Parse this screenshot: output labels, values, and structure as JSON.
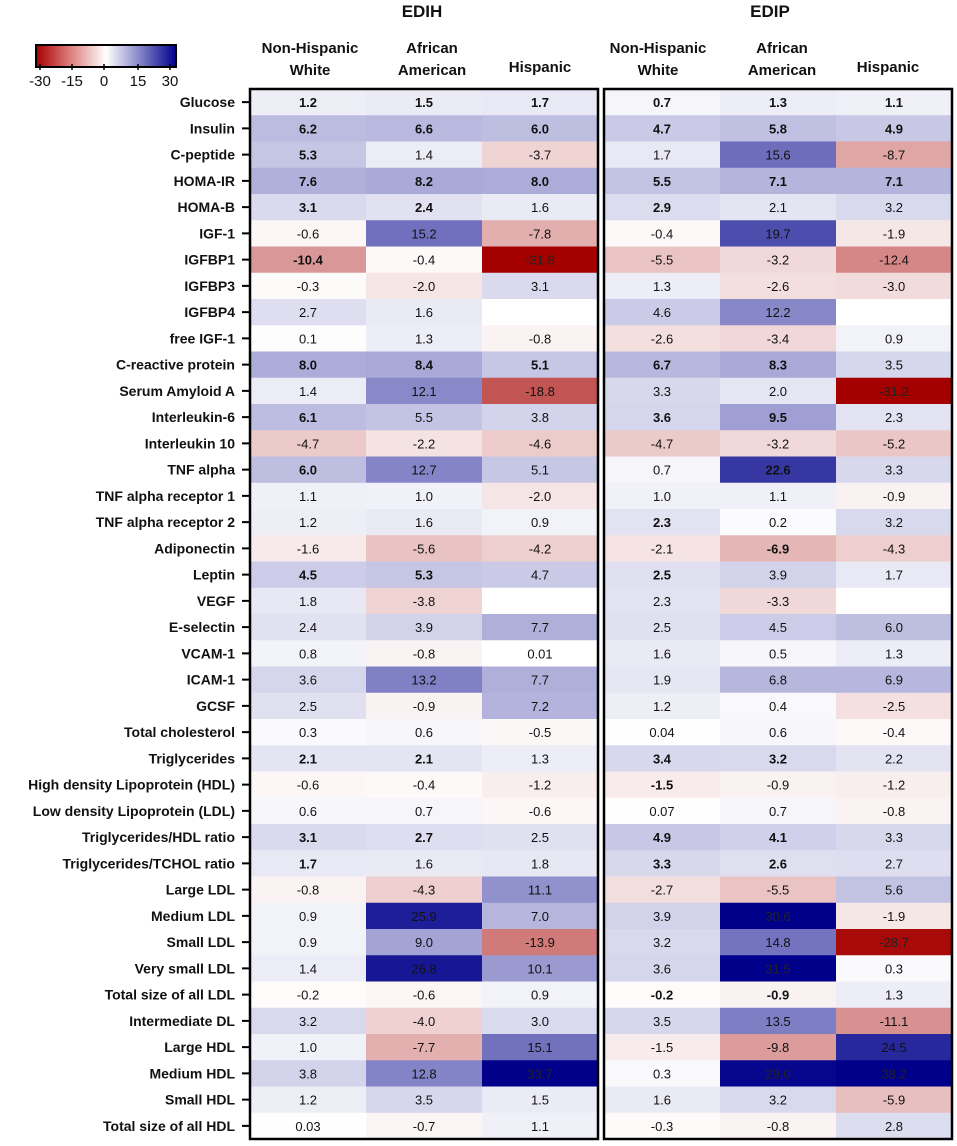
{
  "chart_data": {
    "type": "heatmap",
    "panels": [
      "EDIH",
      "EDIP"
    ],
    "columns": [
      "Non-Hispanic White",
      "African American",
      "Hispanic"
    ],
    "column_header_lines": [
      [
        "Non-Hispanic",
        "White"
      ],
      [
        "African",
        "American"
      ],
      [
        "Hispanic"
      ]
    ],
    "color_scale": {
      "min": -30,
      "max": 30,
      "ticks": [
        "-30",
        "-15",
        "0",
        "15",
        "30"
      ],
      "low_color": "#a50000",
      "mid_color": "#ffffff",
      "high_color": "#00008b"
    },
    "rows": [
      "Glucose",
      "Insulin",
      "C-peptide",
      "HOMA-IR",
      "HOMA-B",
      "IGF-1",
      "IGFBP1",
      "IGFBP3",
      "IGFBP4",
      "free IGF-1",
      "C-reactive protein",
      "Serum Amyloid A",
      "Interleukin-6",
      "Interleukin 10",
      "TNF alpha",
      "TNF alpha receptor 1",
      "TNF alpha receptor 2",
      "Adiponectin",
      "Leptin",
      "VEGF",
      "E-selectin",
      "VCAM-1",
      "ICAM-1",
      "GCSF",
      "Total cholesterol",
      "Triglycerides",
      "High density Lipoprotein (HDL)",
      "Low density Lipoprotein (LDL)",
      "Triglycerides/HDL ratio",
      "Triglycerides/TCHOL ratio",
      "Large LDL",
      "Medium LDL",
      "Small LDL",
      "Very small LDL",
      "Total size of all LDL",
      "Intermediate DL",
      "Large HDL",
      "Medium HDL",
      "Small HDL",
      "Total size of all HDL"
    ],
    "values": {
      "EDIH": [
        [
          "1.2",
          "1.5",
          "1.7"
        ],
        [
          "6.2",
          "6.6",
          "6.0"
        ],
        [
          "5.3",
          "1.4",
          "-3.7"
        ],
        [
          "7.6",
          "8.2",
          "8.0"
        ],
        [
          "3.1",
          "2.4",
          "1.6"
        ],
        [
          "-0.6",
          "15.2",
          "-7.8"
        ],
        [
          "-10.4",
          "-0.4",
          "-31.8"
        ],
        [
          "-0.3",
          "-2.0",
          "3.1"
        ],
        [
          "2.7",
          "1.6",
          ""
        ],
        [
          "0.1",
          "1.3",
          "-0.8"
        ],
        [
          "8.0",
          "8.4",
          "5.1"
        ],
        [
          "1.4",
          "12.1",
          "-18.8"
        ],
        [
          "6.1",
          "5.5",
          "3.8"
        ],
        [
          "-4.7",
          "-2.2",
          "-4.6"
        ],
        [
          "6.0",
          "12.7",
          "5.1"
        ],
        [
          "1.1",
          "1.0",
          "-2.0"
        ],
        [
          "1.2",
          "1.6",
          "0.9"
        ],
        [
          "-1.6",
          "-5.6",
          "-4.2"
        ],
        [
          "4.5",
          "5.3",
          "4.7"
        ],
        [
          "1.8",
          "-3.8",
          ""
        ],
        [
          "2.4",
          "3.9",
          "7.7"
        ],
        [
          "0.8",
          "-0.8",
          "0.01"
        ],
        [
          "3.6",
          "13.2",
          "7.7"
        ],
        [
          "2.5",
          "-0.9",
          "7.2"
        ],
        [
          "0.3",
          "0.6",
          "-0.5"
        ],
        [
          "2.1",
          "2.1",
          "1.3"
        ],
        [
          "-0.6",
          "-0.4",
          "-1.2"
        ],
        [
          "0.6",
          "0.7",
          "-0.6"
        ],
        [
          "3.1",
          "2.7",
          "2.5"
        ],
        [
          "1.7",
          "1.6",
          "1.8"
        ],
        [
          "-0.8",
          "-4.3",
          "11.1"
        ],
        [
          "0.9",
          "25.9",
          "7.0"
        ],
        [
          "0.9",
          "9.0",
          "-13.9"
        ],
        [
          "1.4",
          "26.8",
          "10.1"
        ],
        [
          "-0.2",
          "-0.6",
          "0.9"
        ],
        [
          "3.2",
          "-4.0",
          "3.0"
        ],
        [
          "1.0",
          "-7.7",
          "15.1"
        ],
        [
          "3.8",
          "12.8",
          "33.7"
        ],
        [
          "1.2",
          "3.5",
          "1.5"
        ],
        [
          "0.03",
          "-0.7",
          "1.1"
        ]
      ],
      "EDIP": [
        [
          "0.7",
          "1.3",
          "1.1"
        ],
        [
          "4.7",
          "5.8",
          "4.9"
        ],
        [
          "1.7",
          "15.6",
          "-8.7"
        ],
        [
          "5.5",
          "7.1",
          "7.1"
        ],
        [
          "2.9",
          "2.1",
          "3.2"
        ],
        [
          "-0.4",
          "19.7",
          "-1.9"
        ],
        [
          "-5.5",
          "-3.2",
          "-12.4"
        ],
        [
          "1.3",
          "-2.6",
          "-3.0"
        ],
        [
          "4.6",
          "12.2",
          ""
        ],
        [
          "-2.6",
          "-3.4",
          "0.9"
        ],
        [
          "6.7",
          "8.3",
          "3.5"
        ],
        [
          "3.3",
          "2.0",
          "-31.2"
        ],
        [
          "3.6",
          "9.5",
          "2.3"
        ],
        [
          "-4.7",
          "-3.2",
          "-5.2"
        ],
        [
          "0.7",
          "22.6",
          "3.3"
        ],
        [
          "1.0",
          "1.1",
          "-0.9"
        ],
        [
          "2.3",
          "0.2",
          "3.2"
        ],
        [
          "-2.1",
          "-6.9",
          "-4.3"
        ],
        [
          "2.5",
          "3.9",
          "1.7"
        ],
        [
          "2.3",
          "-3.3",
          ""
        ],
        [
          "2.5",
          "4.5",
          "6.0"
        ],
        [
          "1.6",
          "0.5",
          "1.3"
        ],
        [
          "1.9",
          "6.8",
          "6.9"
        ],
        [
          "1.2",
          "0.4",
          "-2.5"
        ],
        [
          "0.04",
          "0.6",
          "-0.4"
        ],
        [
          "3.4",
          "3.2",
          "2.2"
        ],
        [
          "-1.5",
          "-0.9",
          "-1.2"
        ],
        [
          "0.07",
          "0.7",
          "-0.8"
        ],
        [
          "4.9",
          "4.1",
          "3.3"
        ],
        [
          "3.3",
          "2.6",
          "2.7"
        ],
        [
          "-2.7",
          "-5.5",
          "5.6"
        ],
        [
          "3.9",
          "30.6",
          "-1.9"
        ],
        [
          "3.2",
          "14.8",
          "-28.7"
        ],
        [
          "3.6",
          "31.5",
          "0.3"
        ],
        [
          "-0.2",
          "-0.9",
          "1.3"
        ],
        [
          "3.5",
          "13.5",
          "-11.1"
        ],
        [
          "-1.5",
          "-9.8",
          "24.5"
        ],
        [
          "0.3",
          "29.0",
          "38.2"
        ],
        [
          "1.6",
          "3.2",
          "-5.9"
        ],
        [
          "-0.3",
          "-0.8",
          "2.8"
        ]
      ]
    },
    "bold": {
      "EDIH": [
        [
          1,
          1,
          1
        ],
        [
          1,
          1,
          1
        ],
        [
          1,
          0,
          0
        ],
        [
          1,
          1,
          1
        ],
        [
          1,
          1,
          0
        ],
        [
          0,
          0,
          0
        ],
        [
          1,
          0,
          0
        ],
        [
          0,
          0,
          0
        ],
        [
          0,
          0,
          0
        ],
        [
          0,
          0,
          0
        ],
        [
          1,
          1,
          1
        ],
        [
          0,
          0,
          0
        ],
        [
          1,
          0,
          0
        ],
        [
          0,
          0,
          0
        ],
        [
          1,
          0,
          0
        ],
        [
          0,
          0,
          0
        ],
        [
          0,
          0,
          0
        ],
        [
          0,
          0,
          0
        ],
        [
          1,
          1,
          0
        ],
        [
          0,
          0,
          0
        ],
        [
          0,
          0,
          0
        ],
        [
          0,
          0,
          0
        ],
        [
          0,
          0,
          0
        ],
        [
          0,
          0,
          0
        ],
        [
          0,
          0,
          0
        ],
        [
          1,
          1,
          0
        ],
        [
          0,
          0,
          0
        ],
        [
          0,
          0,
          0
        ],
        [
          1,
          1,
          0
        ],
        [
          1,
          0,
          0
        ],
        [
          0,
          0,
          0
        ],
        [
          0,
          0,
          0
        ],
        [
          0,
          0,
          0
        ],
        [
          0,
          0,
          0
        ],
        [
          0,
          0,
          0
        ],
        [
          0,
          0,
          0
        ],
        [
          0,
          0,
          0
        ],
        [
          0,
          0,
          0
        ],
        [
          0,
          0,
          0
        ],
        [
          0,
          0,
          0
        ]
      ],
      "EDIP": [
        [
          1,
          1,
          1
        ],
        [
          1,
          1,
          1
        ],
        [
          0,
          0,
          0
        ],
        [
          1,
          1,
          1
        ],
        [
          1,
          0,
          0
        ],
        [
          0,
          0,
          0
        ],
        [
          0,
          0,
          0
        ],
        [
          0,
          0,
          0
        ],
        [
          0,
          0,
          0
        ],
        [
          0,
          0,
          0
        ],
        [
          1,
          1,
          0
        ],
        [
          0,
          0,
          0
        ],
        [
          1,
          1,
          0
        ],
        [
          0,
          0,
          0
        ],
        [
          0,
          1,
          0
        ],
        [
          0,
          0,
          0
        ],
        [
          1,
          0,
          0
        ],
        [
          0,
          1,
          0
        ],
        [
          1,
          0,
          0
        ],
        [
          0,
          0,
          0
        ],
        [
          0,
          0,
          0
        ],
        [
          0,
          0,
          0
        ],
        [
          0,
          0,
          0
        ],
        [
          0,
          0,
          0
        ],
        [
          0,
          0,
          0
        ],
        [
          1,
          1,
          0
        ],
        [
          1,
          0,
          0
        ],
        [
          0,
          0,
          0
        ],
        [
          1,
          1,
          0
        ],
        [
          1,
          1,
          0
        ],
        [
          0,
          0,
          0
        ],
        [
          0,
          0,
          0
        ],
        [
          0,
          0,
          0
        ],
        [
          0,
          0,
          0
        ],
        [
          1,
          1,
          0
        ],
        [
          0,
          0,
          0
        ],
        [
          0,
          0,
          0
        ],
        [
          0,
          0,
          0
        ],
        [
          0,
          0,
          0
        ],
        [
          0,
          0,
          0
        ]
      ]
    }
  }
}
